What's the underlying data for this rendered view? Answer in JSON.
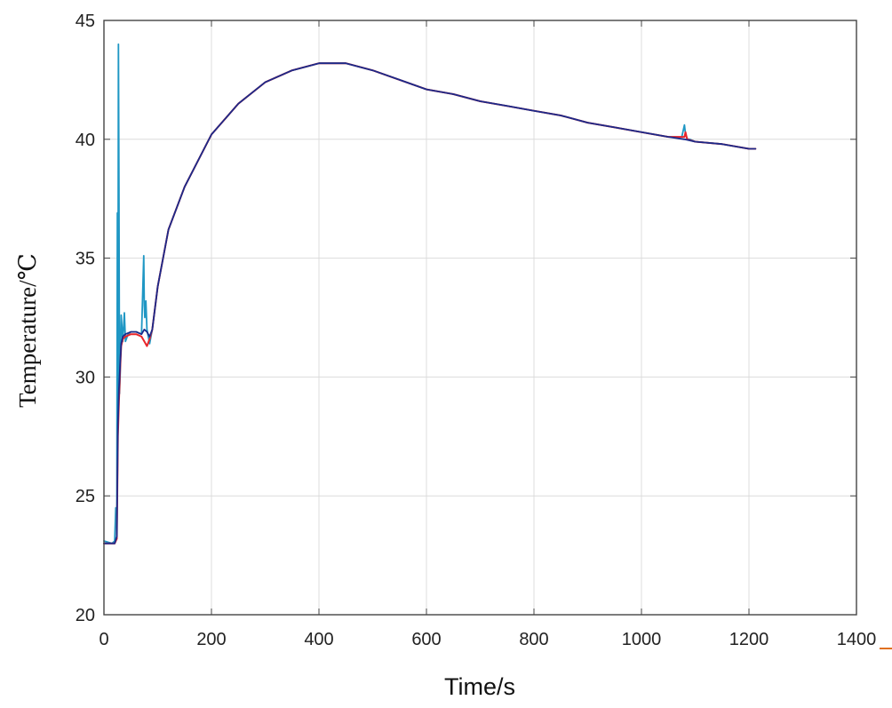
{
  "chart_data": {
    "type": "line",
    "title": "",
    "xlabel": "Time/s",
    "ylabel": "Temperature/℃",
    "xlim": [
      0,
      1400
    ],
    "ylim": [
      20,
      45
    ],
    "xticks": [
      0,
      200,
      400,
      600,
      800,
      1000,
      1200,
      1400
    ],
    "yticks": [
      20,
      25,
      30,
      35,
      40,
      45
    ],
    "xtick_labels": [
      "0",
      "200",
      "400",
      "600",
      "800",
      "1000",
      "1200",
      "1400"
    ],
    "ytick_labels": [
      "20",
      "25",
      "30",
      "35",
      "40",
      "45"
    ],
    "grid": true,
    "legend": "none",
    "colors": {
      "series_a": "#1f97c4",
      "series_b": "#e8262b",
      "series_c": "#1b2a8a",
      "grid": "#dcdcdc",
      "axes": "#444444"
    },
    "series": [
      {
        "color": "#1f97c4",
        "x": [
          0,
          15,
          20,
          22,
          24,
          25,
          26,
          27,
          28,
          29,
          30,
          32,
          35,
          38,
          40,
          45,
          50,
          60,
          70,
          72,
          74,
          75,
          76,
          78,
          80,
          85,
          90,
          100,
          120,
          150,
          200,
          250,
          300,
          350,
          400,
          450,
          500,
          550,
          600,
          650,
          700,
          750,
          800,
          850,
          900,
          950,
          1000,
          1050,
          1075,
          1080,
          1082,
          1084,
          1086,
          1090,
          1100,
          1150,
          1200,
          1212
        ],
        "y": [
          23.1,
          23.0,
          23.1,
          24.5,
          24.2,
          36.9,
          28.5,
          44.0,
          38.0,
          29.3,
          30.0,
          32.6,
          31.5,
          32.7,
          31.5,
          31.8,
          31.9,
          31.9,
          31.8,
          33.5,
          35.1,
          33.0,
          32.5,
          33.2,
          32.0,
          31.4,
          32.0,
          33.8,
          36.2,
          38.0,
          40.2,
          41.5,
          42.4,
          42.9,
          43.2,
          43.2,
          42.9,
          42.5,
          42.1,
          41.9,
          41.6,
          41.4,
          41.2,
          41.0,
          40.7,
          40.5,
          40.3,
          40.1,
          40.1,
          40.6,
          40.2,
          40.1,
          40.0,
          40.0,
          39.9,
          39.8,
          39.6,
          39.6
        ]
      },
      {
        "color": "#e8262b",
        "x": [
          0,
          20,
          24,
          26,
          28,
          30,
          32,
          35,
          40,
          50,
          60,
          70,
          75,
          80,
          85,
          90,
          100,
          120,
          150,
          200,
          250,
          300,
          350,
          400,
          450,
          500,
          550,
          600,
          650,
          700,
          750,
          800,
          850,
          900,
          950,
          1000,
          1050,
          1080,
          1082,
          1085,
          1100,
          1150,
          1200,
          1212
        ],
        "y": [
          23.0,
          23.0,
          23.2,
          27.5,
          29.0,
          30.3,
          31.3,
          31.6,
          31.7,
          31.8,
          31.8,
          31.7,
          31.5,
          31.3,
          31.6,
          32.0,
          33.8,
          36.2,
          38.0,
          40.2,
          41.5,
          42.4,
          42.9,
          43.2,
          43.2,
          42.9,
          42.5,
          42.1,
          41.9,
          41.6,
          41.4,
          41.2,
          41.0,
          40.7,
          40.5,
          40.3,
          40.1,
          40.1,
          40.3,
          40.0,
          39.9,
          39.8,
          39.6,
          39.6
        ]
      },
      {
        "color": "#1b2a8a",
        "x": [
          0,
          20,
          24,
          26,
          28,
          30,
          32,
          35,
          40,
          50,
          60,
          70,
          75,
          80,
          85,
          90,
          100,
          120,
          150,
          200,
          250,
          300,
          350,
          400,
          450,
          500,
          550,
          600,
          650,
          700,
          750,
          800,
          850,
          900,
          950,
          1000,
          1050,
          1080,
          1100,
          1150,
          1200,
          1212
        ],
        "y": [
          23.0,
          23.0,
          23.3,
          28.0,
          29.5,
          30.5,
          31.4,
          31.7,
          31.8,
          31.9,
          31.9,
          31.8,
          32.0,
          31.9,
          31.7,
          32.0,
          33.8,
          36.2,
          38.0,
          40.2,
          41.5,
          42.4,
          42.9,
          43.2,
          43.2,
          42.9,
          42.5,
          42.1,
          41.9,
          41.6,
          41.4,
          41.2,
          41.0,
          40.7,
          40.5,
          40.3,
          40.1,
          40.0,
          39.9,
          39.8,
          39.6,
          39.6
        ]
      }
    ]
  }
}
